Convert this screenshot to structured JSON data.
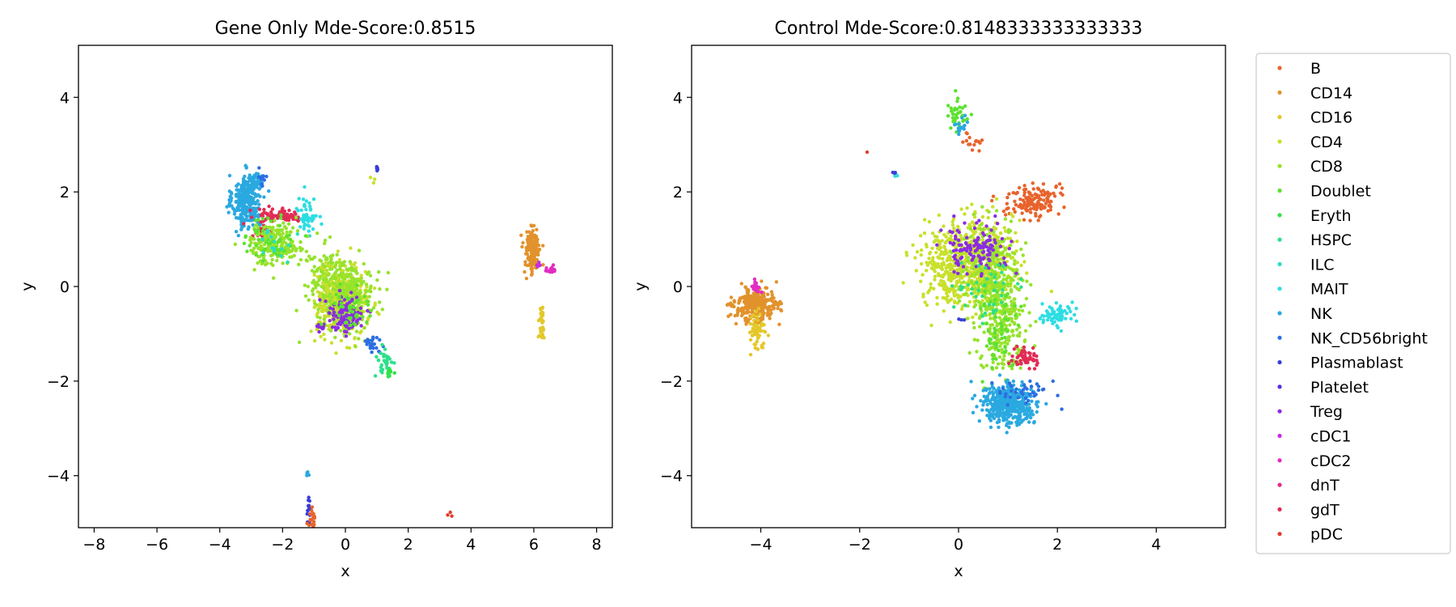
{
  "legend": {
    "entries": [
      {
        "label": "B",
        "color": "#e8632c"
      },
      {
        "label": "CD14",
        "color": "#e2922c"
      },
      {
        "label": "CD16",
        "color": "#e3c82a"
      },
      {
        "label": "CD4",
        "color": "#c9e02b"
      },
      {
        "label": "CD8",
        "color": "#96e32c"
      },
      {
        "label": "Doublet",
        "color": "#5ce231"
      },
      {
        "label": "Eryth",
        "color": "#31e246"
      },
      {
        "label": "HSPC",
        "color": "#2ce08a"
      },
      {
        "label": "ILC",
        "color": "#2bdec3"
      },
      {
        "label": "MAIT",
        "color": "#2ddde3"
      },
      {
        "label": "NK",
        "color": "#2aa9e0"
      },
      {
        "label": "NK_CD56bright",
        "color": "#2c6ee2"
      },
      {
        "label": "Plasmablast",
        "color": "#3a3fd8"
      },
      {
        "label": "Platelet",
        "color": "#5b2ce2"
      },
      {
        "label": "Treg",
        "color": "#8c2ce2"
      },
      {
        "label": "cDC1",
        "color": "#c52ce2"
      },
      {
        "label": "cDC2",
        "color": "#e22cc3"
      },
      {
        "label": "dnT",
        "color": "#e22c8a"
      },
      {
        "label": "gdT",
        "color": "#e22c55"
      },
      {
        "label": "pDC",
        "color": "#e23c2c"
      }
    ]
  },
  "chart_data": [
    {
      "type": "scatter",
      "title": "Gene Only Mde-Score:0.8515",
      "xlabel": "x",
      "ylabel": "y",
      "xlim": [
        -8.5,
        8.5
      ],
      "ylim": [
        -5.1,
        5.1
      ],
      "xticks": [
        -8,
        -6,
        -4,
        -2,
        0,
        2,
        4,
        6,
        8
      ],
      "yticks": [
        -4,
        -2,
        0,
        2,
        4
      ],
      "xtick_labels": [
        "−8",
        "−6",
        "−4",
        "−2",
        "0",
        "2",
        "4",
        "6",
        "8"
      ],
      "ytick_labels": [
        "−4",
        "−2",
        "0",
        "2",
        "4"
      ],
      "grid": false,
      "legend_position": "outside-right",
      "clusters": [
        {
          "label": "NK",
          "cx": -3.15,
          "cy": 1.8,
          "sx": 0.22,
          "sy": 0.28,
          "n": 320
        },
        {
          "label": "NK",
          "cx": -2.85,
          "cy": 2.2,
          "sx": 0.15,
          "sy": 0.1,
          "n": 40
        },
        {
          "label": "NK_CD56bright",
          "cx": -2.7,
          "cy": 2.3,
          "sx": 0.1,
          "sy": 0.08,
          "n": 10
        },
        {
          "label": "gdT",
          "cx": -2.0,
          "cy": 1.5,
          "sx": 0.4,
          "sy": 0.07,
          "n": 80
        },
        {
          "label": "gdT",
          "cx": -2.7,
          "cy": 1.2,
          "sx": 0.2,
          "sy": 0.12,
          "n": 25
        },
        {
          "label": "MAIT",
          "cx": -1.2,
          "cy": 1.5,
          "sx": 0.15,
          "sy": 0.2,
          "n": 50
        },
        {
          "label": "CD8",
          "cx": -2.2,
          "cy": 0.9,
          "sx": 0.45,
          "sy": 0.22,
          "n": 200
        },
        {
          "label": "Doublet",
          "cx": -2.4,
          "cy": 1.0,
          "sx": 0.4,
          "sy": 0.25,
          "n": 50
        },
        {
          "label": "ILC",
          "cx": -2.2,
          "cy": 0.9,
          "sx": 0.3,
          "sy": 0.2,
          "n": 15
        },
        {
          "label": "CD8",
          "cx": -0.6,
          "cy": 0.2,
          "sx": 0.3,
          "sy": 0.3,
          "n": 130
        },
        {
          "label": "CD4",
          "cx": -0.1,
          "cy": -0.35,
          "sx": 0.4,
          "sy": 0.35,
          "n": 450
        },
        {
          "label": "CD8",
          "cx": 0.1,
          "cy": -0.2,
          "sx": 0.4,
          "sy": 0.35,
          "n": 250
        },
        {
          "label": "Treg",
          "cx": 0.0,
          "cy": -0.6,
          "sx": 0.3,
          "sy": 0.2,
          "n": 110
        },
        {
          "label": "Treg",
          "cx": -0.8,
          "cy": -0.85,
          "sx": 0.1,
          "sy": 0.05,
          "n": 15
        },
        {
          "label": "Doublet",
          "cx": 0.2,
          "cy": -0.5,
          "sx": 0.3,
          "sy": 0.3,
          "n": 40
        },
        {
          "label": "NK_CD56bright",
          "cx": 0.85,
          "cy": -1.2,
          "sx": 0.15,
          "sy": 0.12,
          "n": 25
        },
        {
          "label": "HSPC",
          "cx": 1.25,
          "cy": -1.6,
          "sx": 0.15,
          "sy": 0.18,
          "n": 30
        },
        {
          "label": "Eryth",
          "cx": 1.45,
          "cy": -1.85,
          "sx": 0.06,
          "sy": 0.06,
          "n": 10
        },
        {
          "label": "Plasmablast",
          "cx": 1.0,
          "cy": 2.48,
          "sx": 0.04,
          "sy": 0.03,
          "n": 6
        },
        {
          "label": "CD4",
          "cx": 0.85,
          "cy": 2.25,
          "sx": 0.05,
          "sy": 0.04,
          "n": 3
        },
        {
          "label": "CD14",
          "cx": 5.95,
          "cy": 0.75,
          "sx": 0.13,
          "sy": 0.25,
          "n": 140
        },
        {
          "label": "CD16",
          "cx": 6.25,
          "cy": -0.8,
          "sx": 0.05,
          "sy": 0.2,
          "n": 35
        },
        {
          "label": "cDC2",
          "cx": 6.5,
          "cy": 0.35,
          "sx": 0.12,
          "sy": 0.04,
          "n": 15
        },
        {
          "label": "cDC1",
          "cx": 6.1,
          "cy": 0.5,
          "sx": 0.06,
          "sy": 0.05,
          "n": 4
        },
        {
          "label": "NK",
          "cx": -1.2,
          "cy": -3.95,
          "sx": 0.03,
          "sy": 0.05,
          "n": 6
        },
        {
          "label": "Plasmablast",
          "cx": -1.15,
          "cy": -4.7,
          "sx": 0.04,
          "sy": 0.2,
          "n": 15
        },
        {
          "label": "B",
          "cx": -1.05,
          "cy": -5.0,
          "sx": 0.07,
          "sy": 0.12,
          "n": 25
        },
        {
          "label": "pDC",
          "cx": 3.35,
          "cy": -4.8,
          "sx": 0.03,
          "sy": 0.03,
          "n": 3
        }
      ]
    },
    {
      "type": "scatter",
      "title": "Control Mde-Score:0.8148333333333333",
      "xlabel": "x",
      "ylabel": "y",
      "xlim": [
        -5.4,
        5.4
      ],
      "ylim": [
        -5.1,
        5.1
      ],
      "xticks": [
        -4,
        -2,
        0,
        2,
        4
      ],
      "yticks": [
        -4,
        -2,
        0,
        2,
        4
      ],
      "xtick_labels": [
        "−4",
        "−2",
        "0",
        "2",
        "4"
      ],
      "ytick_labels": [
        "−4",
        "−2",
        "0",
        "2",
        "4"
      ],
      "grid": false,
      "legend_position": "outside-right",
      "clusters": [
        {
          "label": "CD14",
          "cx": -4.1,
          "cy": -0.4,
          "sx": 0.22,
          "sy": 0.18,
          "n": 280
        },
        {
          "label": "CD16",
          "cx": -4.1,
          "cy": -0.95,
          "sx": 0.08,
          "sy": 0.2,
          "n": 60
        },
        {
          "label": "cDC2",
          "cx": -4.1,
          "cy": 0.0,
          "sx": 0.05,
          "sy": 0.08,
          "n": 15
        },
        {
          "label": "Doublet",
          "cx": 0.0,
          "cy": 3.7,
          "sx": 0.1,
          "sy": 0.18,
          "n": 40
        },
        {
          "label": "NK",
          "cx": 0.05,
          "cy": 3.4,
          "sx": 0.08,
          "sy": 0.15,
          "n": 15
        },
        {
          "label": "B",
          "cx": 0.35,
          "cy": 3.05,
          "sx": 0.1,
          "sy": 0.1,
          "n": 15
        },
        {
          "label": "B",
          "cx": 1.5,
          "cy": 1.8,
          "sx": 0.25,
          "sy": 0.18,
          "n": 150
        },
        {
          "label": "pDC",
          "cx": -1.85,
          "cy": 2.85,
          "sx": 0.01,
          "sy": 0.01,
          "n": 1
        },
        {
          "label": "MAIT",
          "cx": -1.25,
          "cy": 2.35,
          "sx": 0.04,
          "sy": 0.04,
          "n": 4
        },
        {
          "label": "Plasmablast",
          "cx": -1.3,
          "cy": 2.4,
          "sx": 0.03,
          "sy": 0.02,
          "n": 3
        },
        {
          "label": "CD4",
          "cx": 0.2,
          "cy": 0.5,
          "sx": 0.45,
          "sy": 0.45,
          "n": 700
        },
        {
          "label": "CD8",
          "cx": 0.7,
          "cy": 0.3,
          "sx": 0.3,
          "sy": 0.5,
          "n": 280
        },
        {
          "label": "CD8",
          "cx": 0.9,
          "cy": -0.8,
          "sx": 0.25,
          "sy": 0.5,
          "n": 220
        },
        {
          "label": "Doublet",
          "cx": 0.8,
          "cy": -0.9,
          "sx": 0.2,
          "sy": 0.45,
          "n": 60
        },
        {
          "label": "Treg",
          "cx": 0.35,
          "cy": 0.8,
          "sx": 0.35,
          "sy": 0.25,
          "n": 130
        },
        {
          "label": "HSPC",
          "cx": 0.5,
          "cy": 0.0,
          "sx": 0.3,
          "sy": 0.4,
          "n": 40
        },
        {
          "label": "MAIT",
          "cx": 2.0,
          "cy": -0.6,
          "sx": 0.2,
          "sy": 0.1,
          "n": 70
        },
        {
          "label": "gdT",
          "cx": 1.35,
          "cy": -1.5,
          "sx": 0.15,
          "sy": 0.1,
          "n": 50
        },
        {
          "label": "NK",
          "cx": 1.0,
          "cy": -2.5,
          "sx": 0.25,
          "sy": 0.2,
          "n": 420
        },
        {
          "label": "NK_CD56bright",
          "cx": 1.3,
          "cy": -2.2,
          "sx": 0.25,
          "sy": 0.15,
          "n": 40
        },
        {
          "label": "Plasmablast",
          "cx": 0.1,
          "cy": -0.7,
          "sx": 0.05,
          "sy": 0.05,
          "n": 3
        }
      ]
    }
  ]
}
